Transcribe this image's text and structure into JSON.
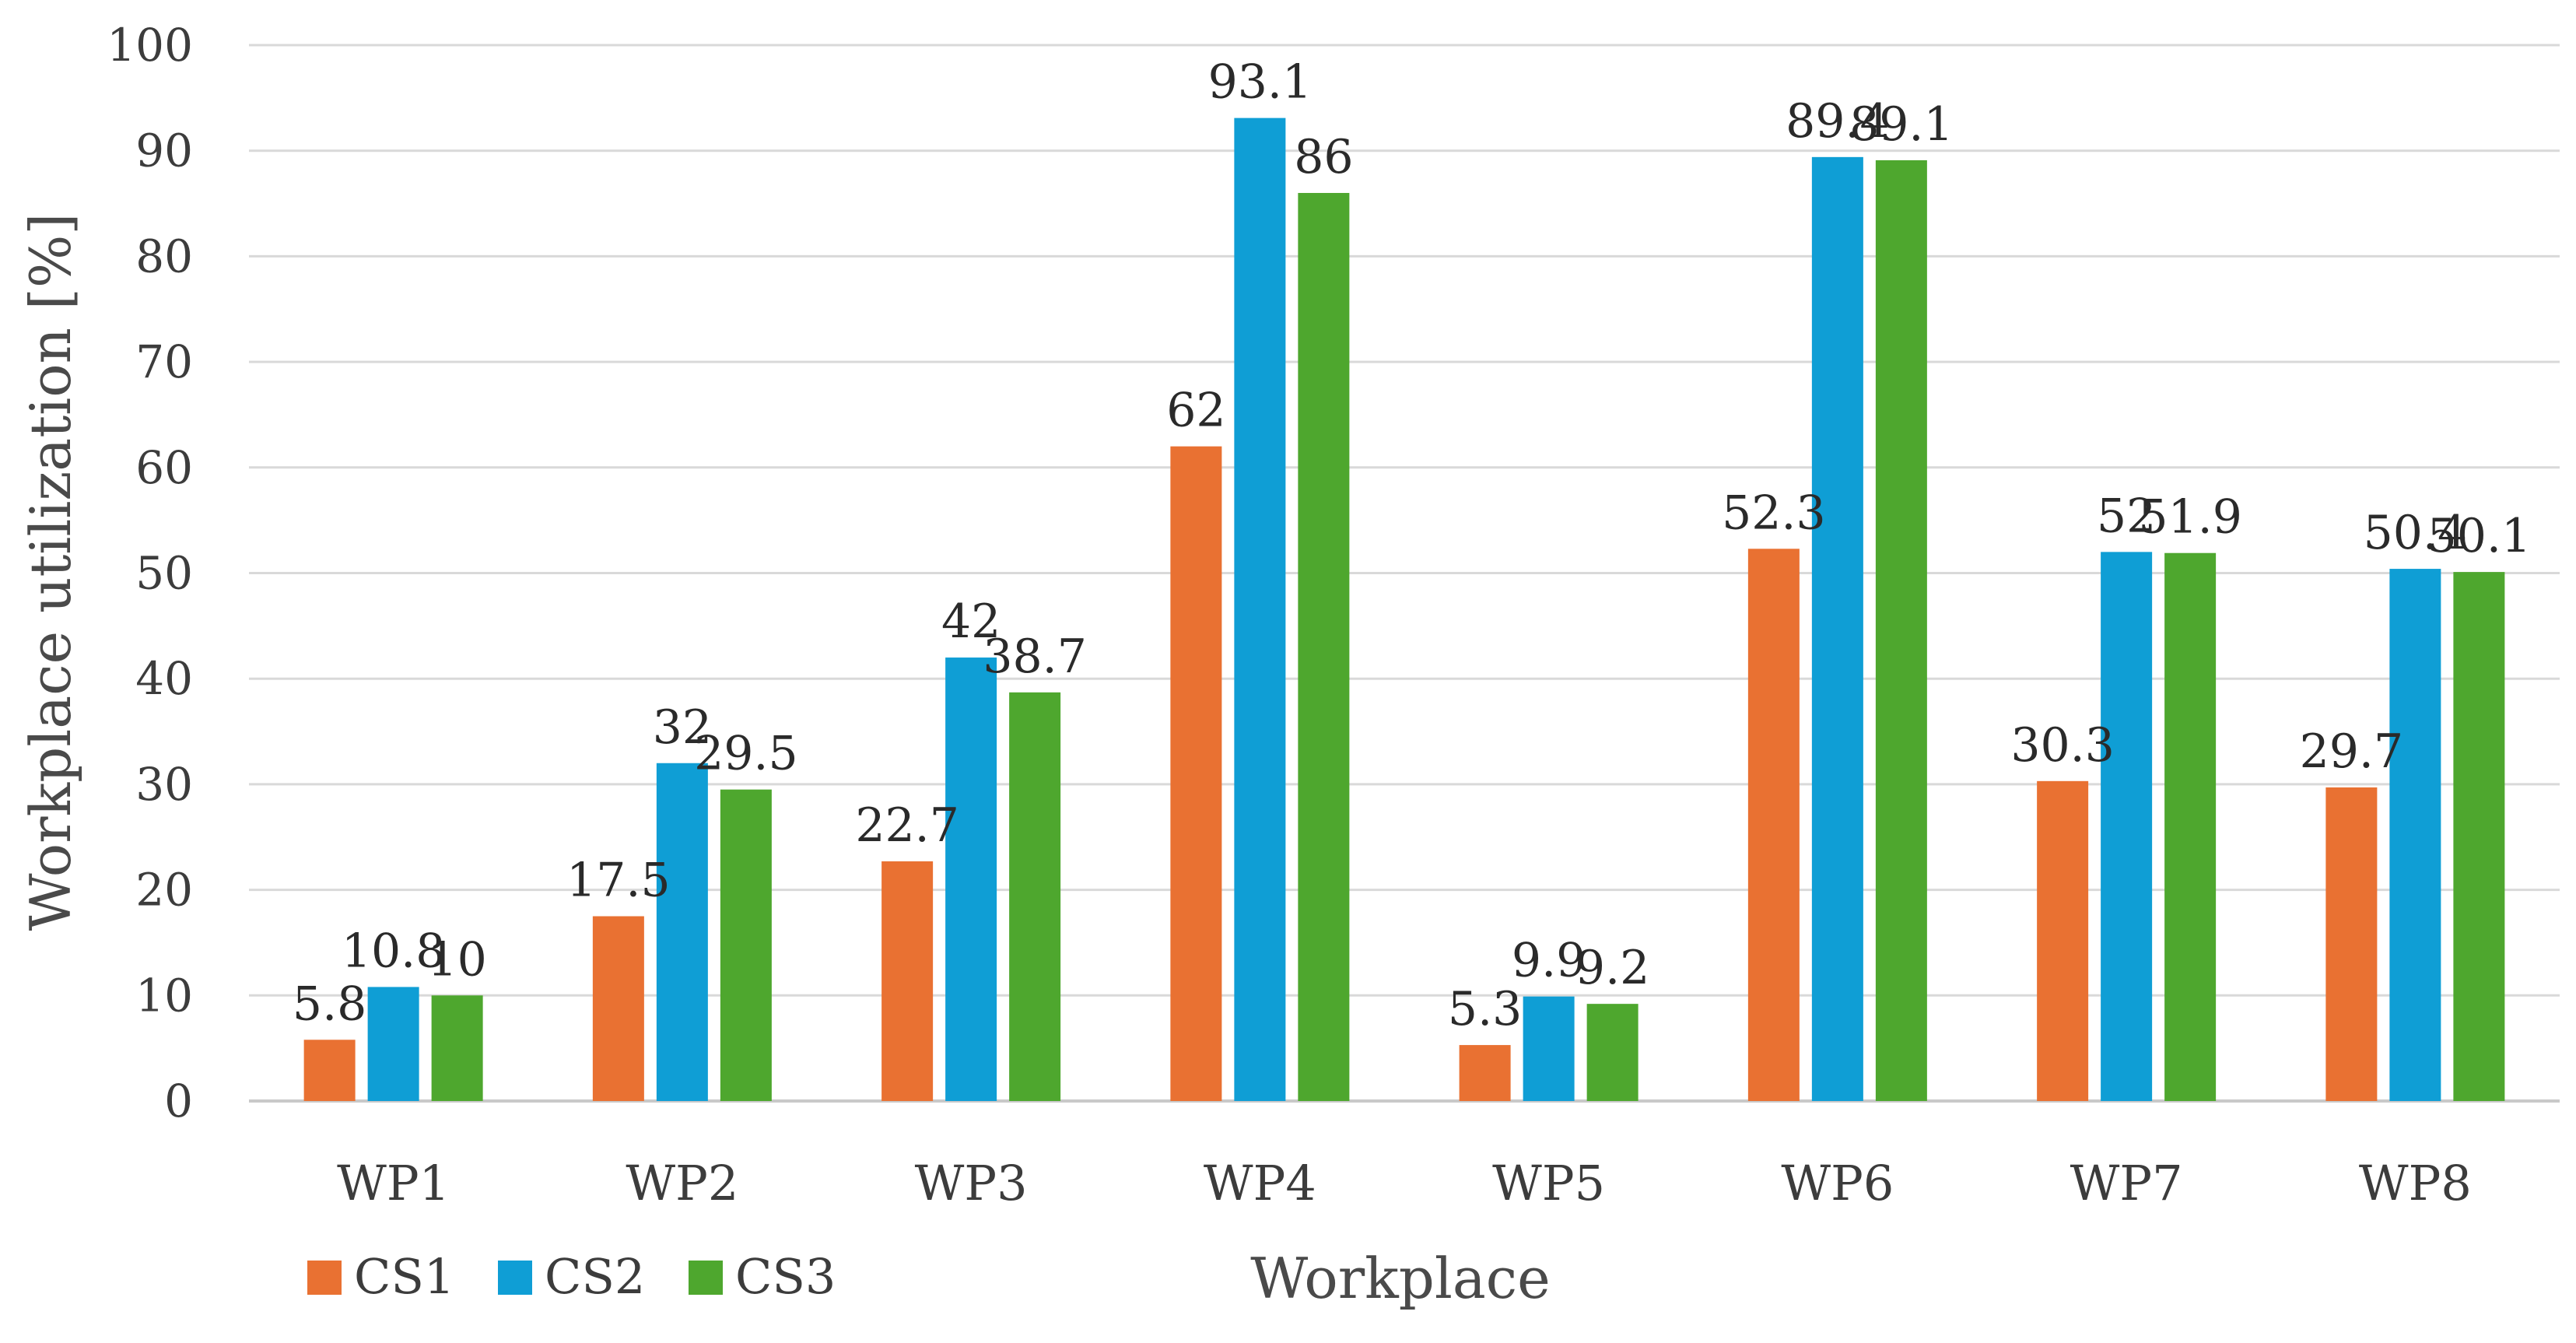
{
  "chart_data": {
    "type": "bar",
    "title": "",
    "xlabel": "Workplace",
    "ylabel": "Workplace utilization [%]",
    "ylim": [
      0,
      100
    ],
    "yticks": [
      0,
      10,
      20,
      30,
      40,
      50,
      60,
      70,
      80,
      90,
      100
    ],
    "grid": true,
    "legend_position": "bottom-left",
    "categories": [
      "WP1",
      "WP2",
      "WP3",
      "WP4",
      "WP5",
      "WP6",
      "WP7",
      "WP8"
    ],
    "series": [
      {
        "name": "CS1",
        "color": "#E97132",
        "values": [
          5.8,
          17.5,
          22.7,
          62,
          5.3,
          52.3,
          30.3,
          29.7
        ]
      },
      {
        "name": "CS2",
        "color": "#0F9ED5",
        "values": [
          10.8,
          32,
          42,
          93.1,
          9.9,
          89.4,
          52,
          50.4
        ]
      },
      {
        "name": "CS3",
        "color": "#4EA72E",
        "values": [
          10,
          29.5,
          38.7,
          86,
          9.2,
          89.1,
          51.9,
          50.1
        ]
      }
    ]
  }
}
